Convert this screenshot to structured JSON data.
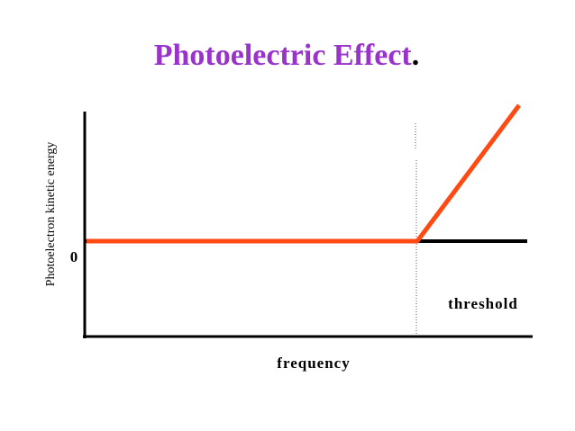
{
  "title": {
    "text": "Photoelectric Effect",
    "period": "."
  },
  "y_axis_label": "Photoelectron kinetic energy",
  "zero_label": "0",
  "threshold_label": "threshold",
  "x_axis_label": "frequency"
}
